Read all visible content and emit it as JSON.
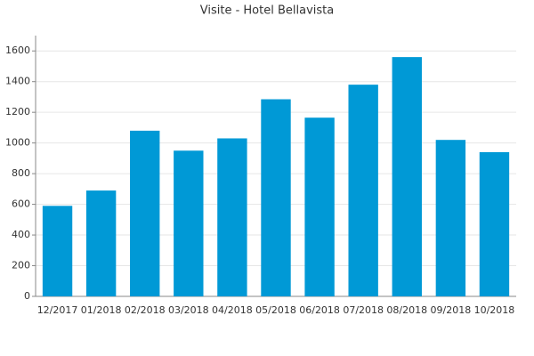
{
  "chart_data": {
    "type": "bar",
    "title": "Visite - Hotel Bellavista",
    "categories": [
      "12/2017",
      "01/2018",
      "02/2018",
      "03/2018",
      "04/2018",
      "05/2018",
      "06/2018",
      "07/2018",
      "08/2018",
      "09/2018",
      "10/2018"
    ],
    "values": [
      590,
      690,
      1080,
      950,
      1030,
      1285,
      1165,
      1380,
      1560,
      1020,
      940
    ],
    "color": "#0099d6",
    "ylim": [
      0,
      1700
    ],
    "yticks": [
      0,
      200,
      400,
      600,
      800,
      1000,
      1200,
      1400,
      1600
    ],
    "grid": true
  }
}
